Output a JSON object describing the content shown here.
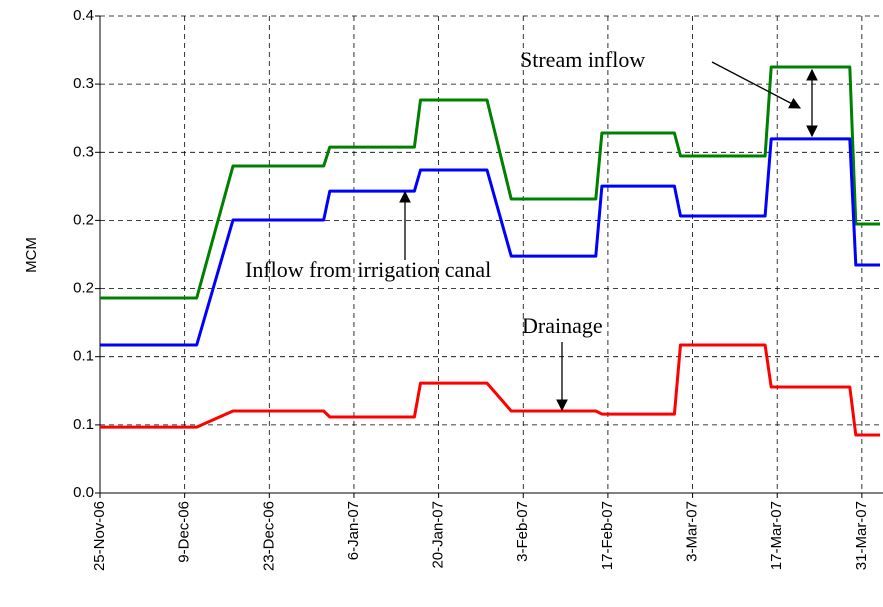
{
  "chart_data": {
    "type": "line",
    "y_label": "MCM",
    "x": [
      "2006-11-25",
      "2006-12-11",
      "2006-12-17",
      "2007-01-01",
      "2007-01-02",
      "2007-01-16",
      "2007-01-17",
      "2007-01-28",
      "2007-02-01",
      "2007-02-15",
      "2007-02-16",
      "2007-02-28",
      "2007-03-01",
      "2007-03-15",
      "2007-03-16",
      "2007-03-29",
      "2007-03-30",
      "2007-04-03"
    ],
    "series": [
      {
        "color": "#008000",
        "values": [
          0.1635,
          0.1635,
          0.2742,
          0.2742,
          0.2901,
          0.2901,
          0.3296,
          0.3296,
          0.2465,
          0.2465,
          0.3019,
          0.3019,
          0.2826,
          0.2826,
          0.3572,
          0.3572,
          0.2256,
          0.2256
        ]
      },
      {
        "color": "#0000ff",
        "values": [
          0.1241,
          0.1241,
          0.2289,
          0.2289,
          0.2532,
          0.2532,
          0.2709,
          0.2709,
          0.1987,
          0.1987,
          0.2574,
          0.2574,
          0.2323,
          0.2323,
          0.2969,
          0.2969,
          0.1912,
          0.1912
        ]
      },
      {
        "color": "#ff0000",
        "values": [
          0.0553,
          0.0553,
          0.0688,
          0.0688,
          0.0637,
          0.0637,
          0.0922,
          0.0922,
          0.0688,
          0.0688,
          0.0662,
          0.0662,
          0.1241,
          0.1241,
          0.0889,
          0.0889,
          0.0486,
          0.0486
        ]
      }
    ],
    "annotations": [
      "Stream inflow",
      "Inflow from irrigation canal",
      "Drainage"
    ],
    "xlim": [
      "2006-11-25",
      "2007-04-03"
    ],
    "xticks": [
      {
        "value": "2006-11-25",
        "label": "25-Nov-06"
      },
      {
        "value": "2006-12-09",
        "label": "9-Dec-06"
      },
      {
        "value": "2006-12-23",
        "label": "23-Dec-06"
      },
      {
        "value": "2007-01-06",
        "label": "6-Jan-07"
      },
      {
        "value": "2007-01-20",
        "label": "20-Jan-07"
      },
      {
        "value": "2007-02-03",
        "label": "3-Feb-07"
      },
      {
        "value": "2007-02-17",
        "label": "17-Feb-07"
      },
      {
        "value": "2007-03-03",
        "label": "3-Mar-07"
      },
      {
        "value": "2007-03-17",
        "label": "17-Mar-07"
      },
      {
        "value": "2007-03-31",
        "label": "31-Mar-07"
      }
    ],
    "ylim": [
      0,
      0.4
    ],
    "yticks": [
      {
        "value": 0,
        "label": "0.0"
      },
      {
        "value": 0.0571,
        "label": "0.1"
      },
      {
        "value": 0.1143,
        "label": "0.1"
      },
      {
        "value": 0.1714,
        "label": "0.2"
      },
      {
        "value": 0.2286,
        "label": "0.2"
      },
      {
        "value": 0.2857,
        "label": "0.3"
      },
      {
        "value": 0.3429,
        "label": "0.3"
      },
      0.4
    ],
    "grid": true
  }
}
